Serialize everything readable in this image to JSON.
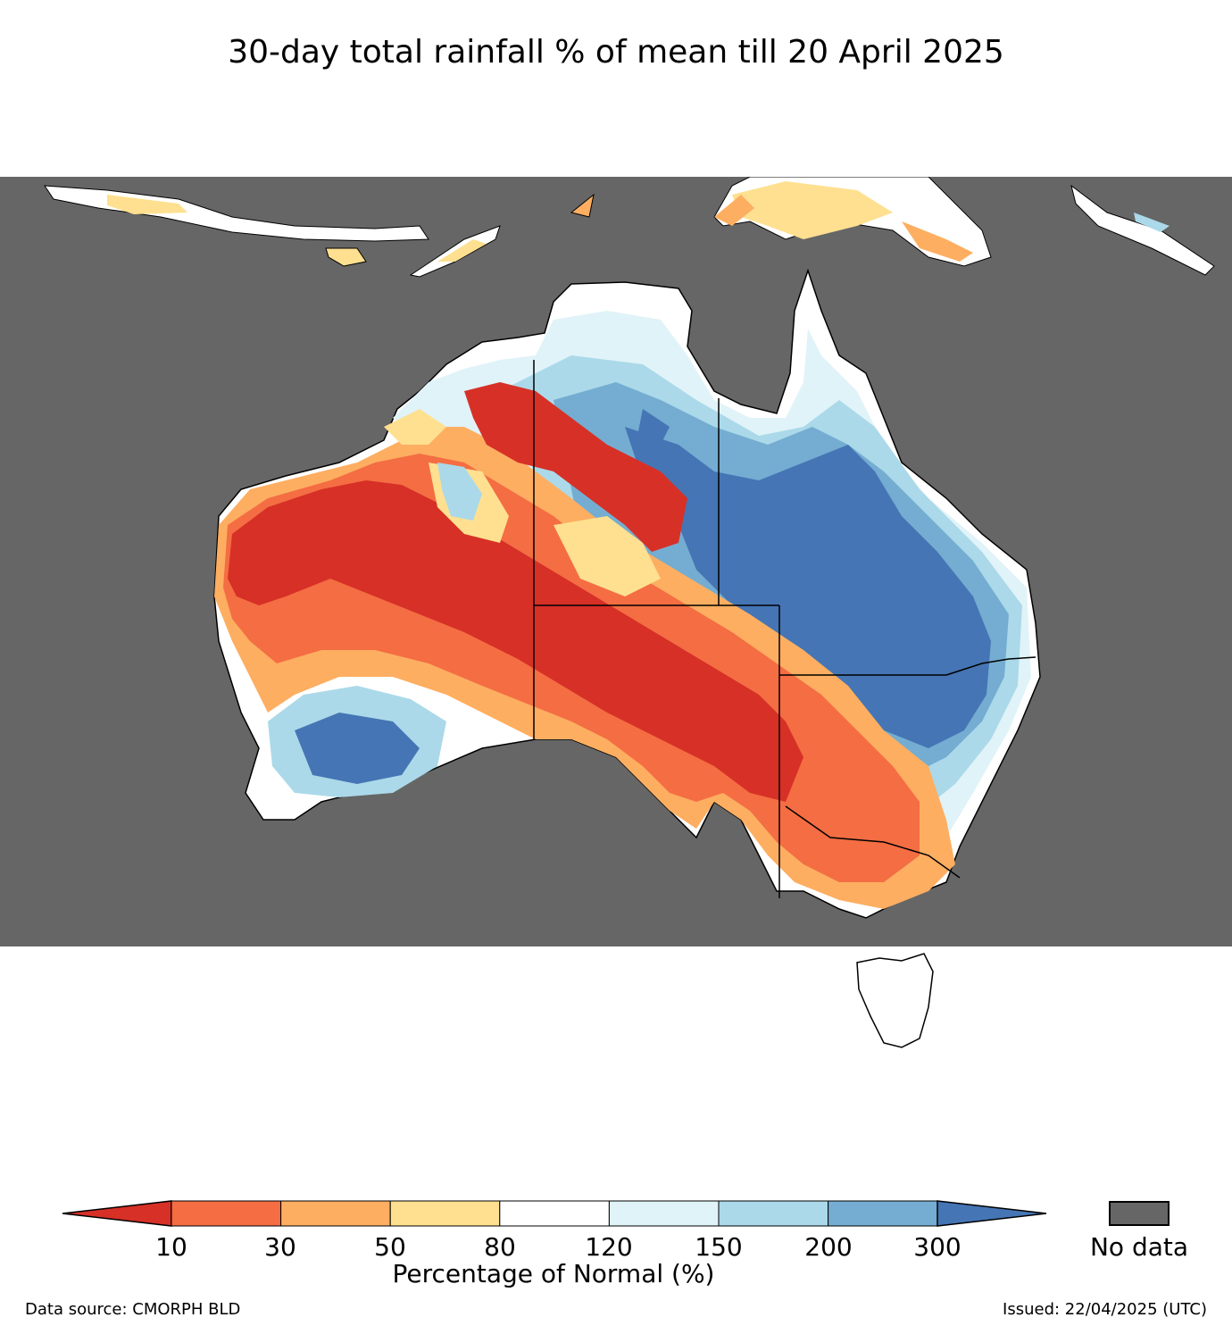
{
  "title": "30-day total rainfall % of mean till 20 April 2025",
  "colorbar": {
    "label": "Percentage of Normal (%)",
    "ticks": [
      "10",
      "30",
      "50",
      "80",
      "120",
      "150",
      "200",
      "300"
    ],
    "bins": [
      {
        "range": "<10",
        "color": "#d73027"
      },
      {
        "range": "10-30",
        "color": "#f46d43"
      },
      {
        "range": "30-50",
        "color": "#fdae61"
      },
      {
        "range": "50-80",
        "color": "#fee090"
      },
      {
        "range": "80-120",
        "color": "#ffffff"
      },
      {
        "range": "120-150",
        "color": "#e0f3f8"
      },
      {
        "range": "150-200",
        "color": "#abd9e9"
      },
      {
        "range": "200-300",
        "color": "#74add1"
      },
      {
        "range": ">300",
        "color": "#4575b4"
      }
    ]
  },
  "nodata": {
    "label": "No data",
    "color": "#666666"
  },
  "footer": {
    "source": "Data source: CMORPH BLD",
    "issued": "Issued: 22/04/2025 (UTC)"
  }
}
